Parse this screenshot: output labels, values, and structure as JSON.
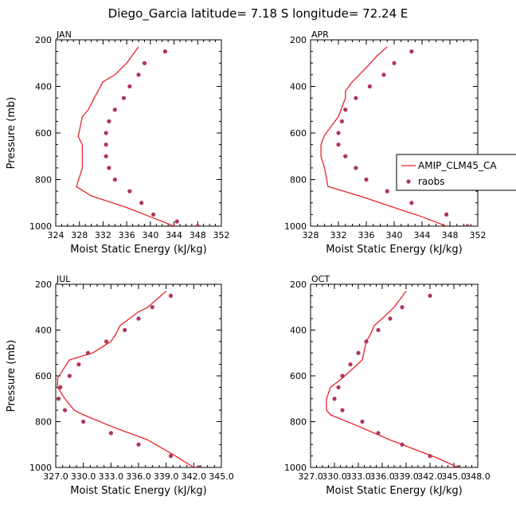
{
  "figure_title": "Diego_Garcia  latitude= 7.18 S longitude= 72.24 E",
  "colors": {
    "model": "#e8242a",
    "obs": "#b03560",
    "axis": "#000000"
  },
  "legend": {
    "model_label": "AMIP_CLM45_CA",
    "obs_label": "raobs",
    "placement": "right-middle of APR panel"
  },
  "chart_data": [
    {
      "type": "line",
      "panel": "JAN",
      "xlabel": "Moist Static Energy (kJ/kg)",
      "ylabel": "Pressure (mb)",
      "xlim": [
        324,
        352
      ],
      "ylim": [
        1000,
        200
      ],
      "xticks": [
        324,
        328,
        332,
        336,
        340,
        344,
        348,
        352
      ],
      "xtick_labels": [
        "324",
        "328",
        "332",
        "336",
        "340",
        "344",
        "348",
        "352"
      ],
      "yticks": [
        200,
        400,
        600,
        800,
        1000
      ],
      "ytick_labels": [
        "200",
        "400",
        "600",
        "800",
        "1000"
      ],
      "series": [
        {
          "name": "AMIP_CLM45_CA",
          "kind": "line",
          "x": [
            338.0,
            336.0,
            334.0,
            332.0,
            330.5,
            329.5,
            328.5,
            327.8,
            328.5,
            328.5,
            328.5,
            327.5,
            330.0,
            336.0,
            340.0,
            344.0
          ],
          "p": [
            230,
            300,
            350,
            380,
            450,
            500,
            530,
            615,
            650,
            700,
            750,
            830,
            870,
            920,
            960,
            1000
          ]
        },
        {
          "name": "raobs",
          "kind": "scatter",
          "x": [
            342.5,
            339.0,
            338.0,
            336.5,
            335.5,
            334.0,
            333.0,
            332.5,
            332.5,
            332.5,
            333.0,
            334.0,
            336.5,
            338.5,
            340.5,
            344.5,
            348.0
          ],
          "p": [
            250,
            300,
            350,
            400,
            450,
            500,
            550,
            600,
            650,
            700,
            750,
            800,
            850,
            900,
            950,
            980,
            1000
          ]
        }
      ]
    },
    {
      "type": "line",
      "panel": "APR",
      "xlabel": "Moist Static Energy (kJ/kg)",
      "ylabel": "",
      "xlim": [
        328,
        352
      ],
      "ylim": [
        1000,
        200
      ],
      "xticks": [
        328,
        332,
        336,
        340,
        344,
        348,
        352
      ],
      "xtick_labels": [
        "328",
        "332",
        "336",
        "340",
        "344",
        "348",
        "352"
      ],
      "yticks": [
        200,
        400,
        600,
        800,
        1000
      ],
      "ytick_labels": [
        "200",
        "400",
        "600",
        "800",
        "1000"
      ],
      "series": [
        {
          "name": "AMIP_CLM45_CA",
          "kind": "line",
          "x": [
            339.0,
            337.5,
            336.0,
            334.0,
            333.0,
            333.0,
            332.0,
            330.0,
            329.5,
            329.5,
            330.0,
            330.5,
            335.0,
            340.0,
            344.0,
            347.5
          ],
          "p": [
            230,
            270,
            320,
            380,
            420,
            450,
            530,
            610,
            650,
            700,
            750,
            830,
            870,
            920,
            960,
            1000
          ]
        },
        {
          "name": "raobs",
          "kind": "scatter",
          "x": [
            342.5,
            340.0,
            338.5,
            336.5,
            334.5,
            333.0,
            332.5,
            332.0,
            332.0,
            333.0,
            334.5,
            336.0,
            339.0,
            342.5,
            347.5,
            350.5
          ],
          "p": [
            250,
            300,
            350,
            400,
            450,
            500,
            550,
            600,
            650,
            700,
            750,
            800,
            850,
            900,
            950,
            1000
          ]
        }
      ]
    },
    {
      "type": "line",
      "panel": "JUL",
      "xlabel": "Moist Static Energy (kJ/kg)",
      "ylabel": "Pressure (mb)",
      "xlim": [
        327,
        345
      ],
      "ylim": [
        1000,
        200
      ],
      "xticks": [
        327,
        330,
        333,
        336,
        339,
        342,
        345
      ],
      "xtick_labels": [
        "327.0",
        "330.0",
        "333.0",
        "336.0",
        "339.0",
        "342.0",
        "345.0"
      ],
      "yticks": [
        200,
        400,
        600,
        800,
        1000
      ],
      "ytick_labels": [
        "200",
        "400",
        "600",
        "800",
        "1000"
      ],
      "series": [
        {
          "name": "AMIP_CLM45_CA",
          "kind": "line",
          "x": [
            339.0,
            337.0,
            336.0,
            334.0,
            333.5,
            333.0,
            331.0,
            328.5,
            327.2,
            327.2,
            328.0,
            329.0,
            330.0,
            333.0,
            337.0,
            340.0,
            342.0
          ],
          "p": [
            230,
            300,
            320,
            380,
            420,
            450,
            500,
            530,
            610,
            650,
            700,
            750,
            770,
            820,
            880,
            950,
            1000
          ]
        },
        {
          "name": "raobs",
          "kind": "scatter",
          "x": [
            339.5,
            337.5,
            336.0,
            334.5,
            332.5,
            330.5,
            329.5,
            328.5,
            327.5,
            327.3,
            328.0,
            330.0,
            333.0,
            336.0,
            339.5,
            342.5
          ],
          "p": [
            250,
            300,
            350,
            400,
            450,
            500,
            550,
            600,
            650,
            700,
            750,
            800,
            850,
            900,
            950,
            1000
          ]
        }
      ]
    },
    {
      "type": "line",
      "panel": "OCT",
      "xlabel": "Moist Static Energy (kJ/kg)",
      "ylabel": "",
      "xlim": [
        327,
        348
      ],
      "ylim": [
        1000,
        200
      ],
      "xticks": [
        327,
        330,
        333,
        336,
        339,
        342,
        345,
        348
      ],
      "xtick_labels": [
        "327.0",
        "330.0",
        "333.0",
        "336.0",
        "339.0",
        "342.0",
        "345.0",
        "348.0"
      ],
      "yticks": [
        200,
        400,
        600,
        800,
        1000
      ],
      "ytick_labels": [
        "200",
        "400",
        "600",
        "800",
        "1000"
      ],
      "series": [
        {
          "name": "AMIP_CLM45_CA",
          "kind": "line",
          "x": [
            339.0,
            337.5,
            336.0,
            335.0,
            334.5,
            334.0,
            333.5,
            331.0,
            329.5,
            329.0,
            329.0,
            329.5,
            333.0,
            337.0,
            340.0,
            343.0,
            345.5
          ],
          "p": [
            230,
            300,
            350,
            380,
            420,
            450,
            530,
            610,
            650,
            700,
            750,
            770,
            820,
            880,
            920,
            960,
            1000
          ]
        },
        {
          "name": "raobs",
          "kind": "scatter",
          "x": [
            342.0,
            338.5,
            337.0,
            335.5,
            334.0,
            333.0,
            332.0,
            331.0,
            330.5,
            330.0,
            331.0,
            333.5,
            335.5,
            338.5,
            342.0,
            345.5
          ],
          "p": [
            250,
            300,
            350,
            400,
            450,
            500,
            550,
            600,
            650,
            700,
            750,
            800,
            850,
            900,
            950,
            1000
          ]
        }
      ]
    }
  ]
}
